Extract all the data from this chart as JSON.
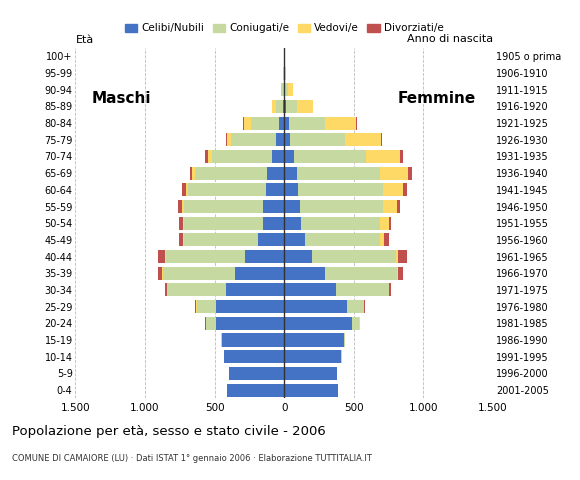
{
  "age_groups": [
    "0-4",
    "5-9",
    "10-14",
    "15-19",
    "20-24",
    "25-29",
    "30-34",
    "35-39",
    "40-44",
    "45-49",
    "50-54",
    "55-59",
    "60-64",
    "65-69",
    "70-74",
    "75-79",
    "80-84",
    "85-89",
    "90-94",
    "95-99",
    "100+"
  ],
  "birth_years": [
    "2001-2005",
    "1996-2000",
    "1991-1995",
    "1986-1990",
    "1981-1985",
    "1976-1980",
    "1971-1975",
    "1966-1970",
    "1961-1965",
    "1956-1960",
    "1951-1955",
    "1946-1950",
    "1941-1945",
    "1936-1940",
    "1931-1935",
    "1926-1930",
    "1921-1925",
    "1916-1920",
    "1911-1915",
    "1906-1910",
    "1905 o prima"
  ],
  "males": {
    "celibi": [
      410,
      400,
      430,
      450,
      490,
      490,
      420,
      350,
      280,
      190,
      150,
      150,
      130,
      120,
      90,
      60,
      40,
      10,
      5,
      2,
      0
    ],
    "coniugati": [
      0,
      0,
      2,
      5,
      70,
      140,
      420,
      520,
      570,
      530,
      570,
      570,
      560,
      520,
      430,
      320,
      200,
      50,
      15,
      3,
      0
    ],
    "vedovi": [
      0,
      0,
      0,
      0,
      2,
      3,
      3,
      5,
      5,
      5,
      10,
      12,
      15,
      20,
      30,
      30,
      50,
      25,
      5,
      1,
      0
    ],
    "divorziati": [
      0,
      0,
      0,
      0,
      5,
      8,
      15,
      30,
      50,
      30,
      25,
      30,
      30,
      20,
      20,
      10,
      5,
      0,
      0,
      0,
      0
    ]
  },
  "females": {
    "nubili": [
      390,
      380,
      410,
      430,
      490,
      450,
      370,
      290,
      200,
      150,
      120,
      110,
      100,
      90,
      70,
      45,
      35,
      10,
      5,
      2,
      0
    ],
    "coniugate": [
      0,
      0,
      2,
      5,
      50,
      120,
      380,
      520,
      600,
      540,
      570,
      600,
      610,
      600,
      520,
      390,
      260,
      80,
      20,
      3,
      0
    ],
    "vedove": [
      0,
      0,
      0,
      0,
      3,
      5,
      5,
      10,
      20,
      30,
      60,
      100,
      140,
      200,
      240,
      260,
      220,
      120,
      40,
      5,
      0
    ],
    "divorziate": [
      0,
      0,
      0,
      0,
      3,
      5,
      10,
      30,
      60,
      30,
      15,
      25,
      30,
      30,
      20,
      10,
      5,
      0,
      0,
      0,
      0
    ]
  },
  "colors": {
    "celibi": "#4472c4",
    "coniugati": "#c5d9a0",
    "vedovi": "#ffd966",
    "divorziati": "#c0504d"
  },
  "xlim": 1500,
  "title": "Popolazione per età, sesso e stato civile - 2006",
  "subtitle": "COMUNE DI CAMAIORE (LU) · Dati ISTAT 1° gennaio 2006 · Elaborazione TUTTITALIA.IT",
  "ylabel_left": "Età",
  "ylabel_right": "Anno di nascita",
  "xlabel_left": "Maschi",
  "xlabel_right": "Femmine",
  "legend_labels": [
    "Celibi/Nubili",
    "Coniugati/e",
    "Vedovi/e",
    "Divorziati/e"
  ],
  "legend_colors": [
    "#4472c4",
    "#c5d9a0",
    "#ffd966",
    "#c0504d"
  ],
  "background_color": "#ffffff"
}
